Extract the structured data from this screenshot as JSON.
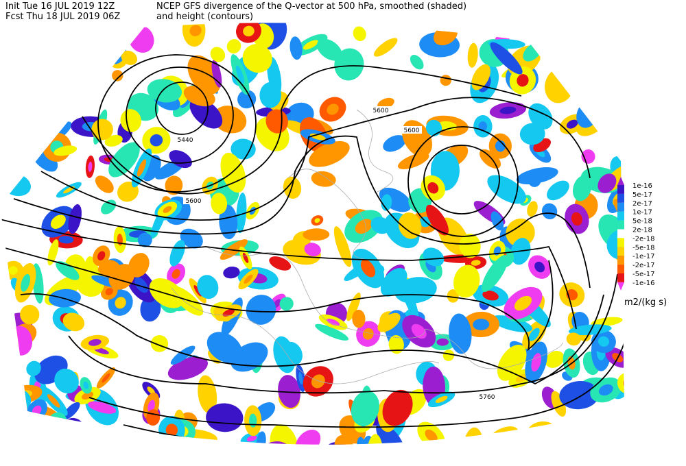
{
  "header": {
    "init": "Init  Tue 16 JUL 2019 12Z",
    "fcst": "Fcst Thu 18 JUL 2019 06Z",
    "title": "NCEP GFS divergence of the Q-vector at 500 hPa, smoothed (shaded)",
    "subtitle": "and height (contours)"
  },
  "contour_labels": [
    "5440",
    "5600",
    "5600",
    "5600",
    "5760"
  ],
  "colorbar": {
    "labels": [
      "1e-16",
      "5e-17",
      "2e-17",
      "1e-17",
      "5e-18",
      "2e-18",
      "-2e-18",
      "-5e-18",
      "-1e-17",
      "-2e-17",
      "-5e-17",
      "-1e-16"
    ],
    "colors": [
      "#9b1fd0",
      "#3c14c8",
      "#1e50e6",
      "#1e8cf5",
      "#14c8f0",
      "#28e6b4",
      "#ffffff",
      "#f5f500",
      "#ffd200",
      "#ff9600",
      "#ff5a00",
      "#e61414",
      "#f03cf0"
    ],
    "units": "m2/(kg s)"
  }
}
